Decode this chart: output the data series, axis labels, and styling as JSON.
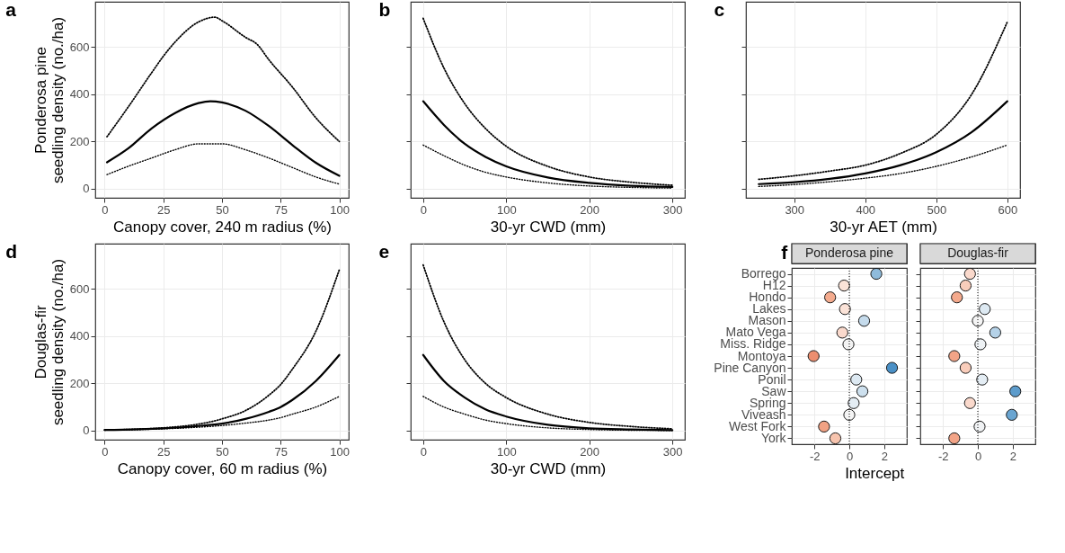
{
  "chart_data": [
    {
      "type": "line",
      "title": "a",
      "ylabel": "Ponderosa pine\nseedling density (no./ha)",
      "xlabel": "Canopy cover, 240 m radius (%)",
      "xlim": [
        -4,
        104
      ],
      "xticks": [
        0,
        25,
        50,
        75,
        100
      ],
      "ylim": [
        -38,
        790
      ],
      "yticks": [
        0,
        200,
        400,
        600
      ],
      "grid": true,
      "series": [
        {
          "color": "#000000",
          "line_style": "solid",
          "x": [
            1,
            10,
            20,
            30,
            40,
            45,
            50,
            60,
            70,
            80,
            90,
            100
          ],
          "values": [
            112,
            170,
            255,
            320,
            362,
            370,
            365,
            330,
            265,
            185,
            110,
            55
          ]
        },
        {
          "color": "#000000",
          "line_style": "dotted",
          "x": [
            1,
            10,
            20,
            25,
            30,
            40,
            47,
            50,
            60,
            65,
            70,
            80,
            90,
            100
          ],
          "values": [
            220,
            345,
            490,
            560,
            620,
            705,
            725,
            710,
            640,
            610,
            545,
            430,
            300,
            200
          ]
        },
        {
          "color": "#000000",
          "line_style": "dotted",
          "x": [
            1,
            10,
            20,
            30,
            40,
            50,
            60,
            70,
            80,
            90,
            100
          ],
          "values": [
            60,
            95,
            130,
            165,
            190,
            190,
            165,
            130,
            90,
            50,
            20
          ]
        }
      ]
    },
    {
      "type": "line",
      "title": "b",
      "xlabel": "30-yr CWD (mm)",
      "xlim": [
        -15,
        315
      ],
      "xticks": [
        0,
        100,
        200,
        300
      ],
      "ylim": [
        -38,
        790
      ],
      "yticks": [
        0,
        200,
        400,
        600
      ],
      "tick_labels": "x",
      "grid": true,
      "series": [
        {
          "color": "#000000",
          "line_style": "solid",
          "x": [
            0,
            25,
            50,
            75,
            100,
            150,
            200,
            250,
            300
          ],
          "values": [
            370,
            270,
            190,
            135,
            95,
            48,
            25,
            13,
            8
          ]
        },
        {
          "color": "#000000",
          "line_style": "dotted",
          "x": [
            0,
            25,
            50,
            75,
            100,
            150,
            200,
            250,
            300
          ],
          "values": [
            720,
            510,
            360,
            255,
            180,
            95,
            50,
            28,
            15
          ]
        },
        {
          "color": "#000000",
          "line_style": "dotted",
          "x": [
            0,
            25,
            50,
            75,
            100,
            150,
            200,
            250,
            300
          ],
          "values": [
            185,
            140,
            100,
            70,
            50,
            25,
            12,
            6,
            3
          ]
        }
      ]
    },
    {
      "type": "line",
      "title": "c",
      "xlabel": "30-yr AET (mm)",
      "xlim": [
        232,
        618
      ],
      "xticks": [
        300,
        400,
        500,
        600
      ],
      "ylim": [
        -38,
        790
      ],
      "yticks": [
        0,
        200,
        400,
        600
      ],
      "tick_labels": "x",
      "grid": true,
      "series": [
        {
          "color": "#000000",
          "line_style": "solid",
          "x": [
            250,
            300,
            350,
            400,
            450,
            500,
            550,
            600
          ],
          "values": [
            20,
            28,
            42,
            65,
            100,
            155,
            240,
            370
          ]
        },
        {
          "color": "#000000",
          "line_style": "dotted",
          "x": [
            250,
            300,
            350,
            400,
            450,
            500,
            550,
            600
          ],
          "values": [
            40,
            55,
            75,
            100,
            150,
            230,
            400,
            705
          ]
        },
        {
          "color": "#000000",
          "line_style": "dotted",
          "x": [
            250,
            300,
            350,
            400,
            450,
            500,
            550,
            600
          ],
          "values": [
            10,
            18,
            30,
            45,
            65,
            95,
            135,
            185
          ]
        }
      ]
    },
    {
      "type": "line",
      "title": "d",
      "ylabel": "Douglas-fir\nseedling density (no./ha)",
      "xlabel": "Canopy cover, 60 m radius (%)",
      "xlim": [
        -4,
        104
      ],
      "xticks": [
        0,
        25,
        50,
        75,
        100
      ],
      "ylim": [
        -38,
        790
      ],
      "yticks": [
        0,
        200,
        400,
        600
      ],
      "grid": true,
      "series": [
        {
          "color": "#000000",
          "line_style": "solid",
          "x": [
            0,
            25,
            40,
            50,
            60,
            70,
            75,
            80,
            90,
            100
          ],
          "values": [
            3,
            10,
            20,
            30,
            50,
            80,
            100,
            130,
            210,
            320
          ]
        },
        {
          "color": "#000000",
          "line_style": "dotted",
          "x": [
            0,
            25,
            50,
            60,
            70,
            75,
            80,
            90,
            100
          ],
          "values": [
            3,
            12,
            50,
            85,
            150,
            195,
            260,
            420,
            680
          ]
        },
        {
          "color": "#000000",
          "line_style": "dotted",
          "x": [
            0,
            25,
            50,
            60,
            70,
            75,
            80,
            90,
            100
          ],
          "values": [
            2,
            8,
            22,
            32,
            45,
            55,
            70,
            100,
            145
          ]
        }
      ]
    },
    {
      "type": "line",
      "title": "e",
      "xlabel": "30-yr CWD (mm)",
      "xlim": [
        -15,
        315
      ],
      "xticks": [
        0,
        100,
        200,
        300
      ],
      "ylim": [
        -38,
        790
      ],
      "yticks": [
        0,
        200,
        400,
        600
      ],
      "tick_labels": "x",
      "grid": true,
      "series": [
        {
          "color": "#000000",
          "line_style": "solid",
          "x": [
            0,
            25,
            50,
            75,
            100,
            150,
            200,
            250,
            300
          ],
          "values": [
            320,
            210,
            140,
            90,
            60,
            25,
            10,
            5,
            2
          ]
        },
        {
          "color": "#000000",
          "line_style": "dotted",
          "x": [
            0,
            25,
            50,
            75,
            100,
            150,
            200,
            250,
            300
          ],
          "values": [
            700,
            460,
            300,
            200,
            140,
            70,
            35,
            18,
            8
          ]
        },
        {
          "color": "#000000",
          "line_style": "dotted",
          "x": [
            0,
            25,
            50,
            75,
            100,
            150,
            200,
            250,
            300
          ],
          "values": [
            145,
            100,
            70,
            45,
            30,
            12,
            5,
            2,
            1
          ]
        }
      ]
    },
    {
      "type": "scatter",
      "orientation": "horizontal",
      "title": "f",
      "subtitle": "Ponderosa pine",
      "xlabel": "Intercept",
      "xlim": [
        -3.3,
        3.3
      ],
      "xticks": [
        -2,
        0,
        2
      ],
      "grid": true,
      "marker": "circle",
      "categories": [
        "Borrego",
        "H12",
        "Hondo",
        "Lakes",
        "Mason",
        "Mato Vega",
        "Miss. Ridge",
        "Montoya",
        "Pine Canyon",
        "Ponil",
        "Saw",
        "Spring",
        "Viveash",
        "West Fork",
        "York"
      ],
      "values": [
        1.55,
        -0.3,
        -1.1,
        -0.25,
        0.85,
        -0.4,
        -0.05,
        -2.05,
        2.45,
        0.4,
        0.75,
        0.25,
        0.0,
        -1.45,
        -0.8
      ],
      "colors": [
        "#8fbbdb",
        "#fbe3d8",
        "#f4ab8e",
        "#fbe3d8",
        "#c5dbec",
        "#fad9cc",
        "#f3f3f3",
        "#ec8e6f",
        "#4a90c6",
        "#dde9f2",
        "#cde0ee",
        "#e4edf4",
        "#f5f5f5",
        "#f1a284",
        "#f7c4ae"
      ],
      "ref_lines": [
        {
          "axis": "x",
          "value": 0,
          "color": "#000000",
          "line_style": "dotted"
        }
      ]
    },
    {
      "type": "scatter",
      "orientation": "horizontal",
      "subtitle": "Douglas-fir",
      "xlim": [
        -3.3,
        3.3
      ],
      "xticks": [
        -2,
        0,
        2
      ],
      "tick_labels": "x",
      "grid": true,
      "marker": "circle",
      "categories": [
        null,
        null,
        null,
        null,
        null,
        null,
        null,
        null,
        null,
        null,
        null,
        null,
        null,
        null,
        null
      ],
      "values": [
        -0.45,
        -0.7,
        -1.2,
        0.4,
        0.0,
        1.0,
        0.15,
        -1.35,
        -0.7,
        0.25,
        2.15,
        -0.45,
        1.95,
        0.1,
        -1.35
      ],
      "colors": [
        "#fad9cc",
        "#f9cdbb",
        "#f4a98c",
        "#dde9f2",
        "#f5f5f5",
        "#b5d2e8",
        "#eef2f5",
        "#f3a487",
        "#f9cdbb",
        "#e4edf4",
        "#5d9ccc",
        "#fad9cc",
        "#6aa5d1",
        "#f0f2f4",
        "#f3a487"
      ],
      "ref_lines": [
        {
          "axis": "x",
          "value": 0,
          "color": "#000000",
          "line_style": "dotted"
        }
      ]
    }
  ]
}
